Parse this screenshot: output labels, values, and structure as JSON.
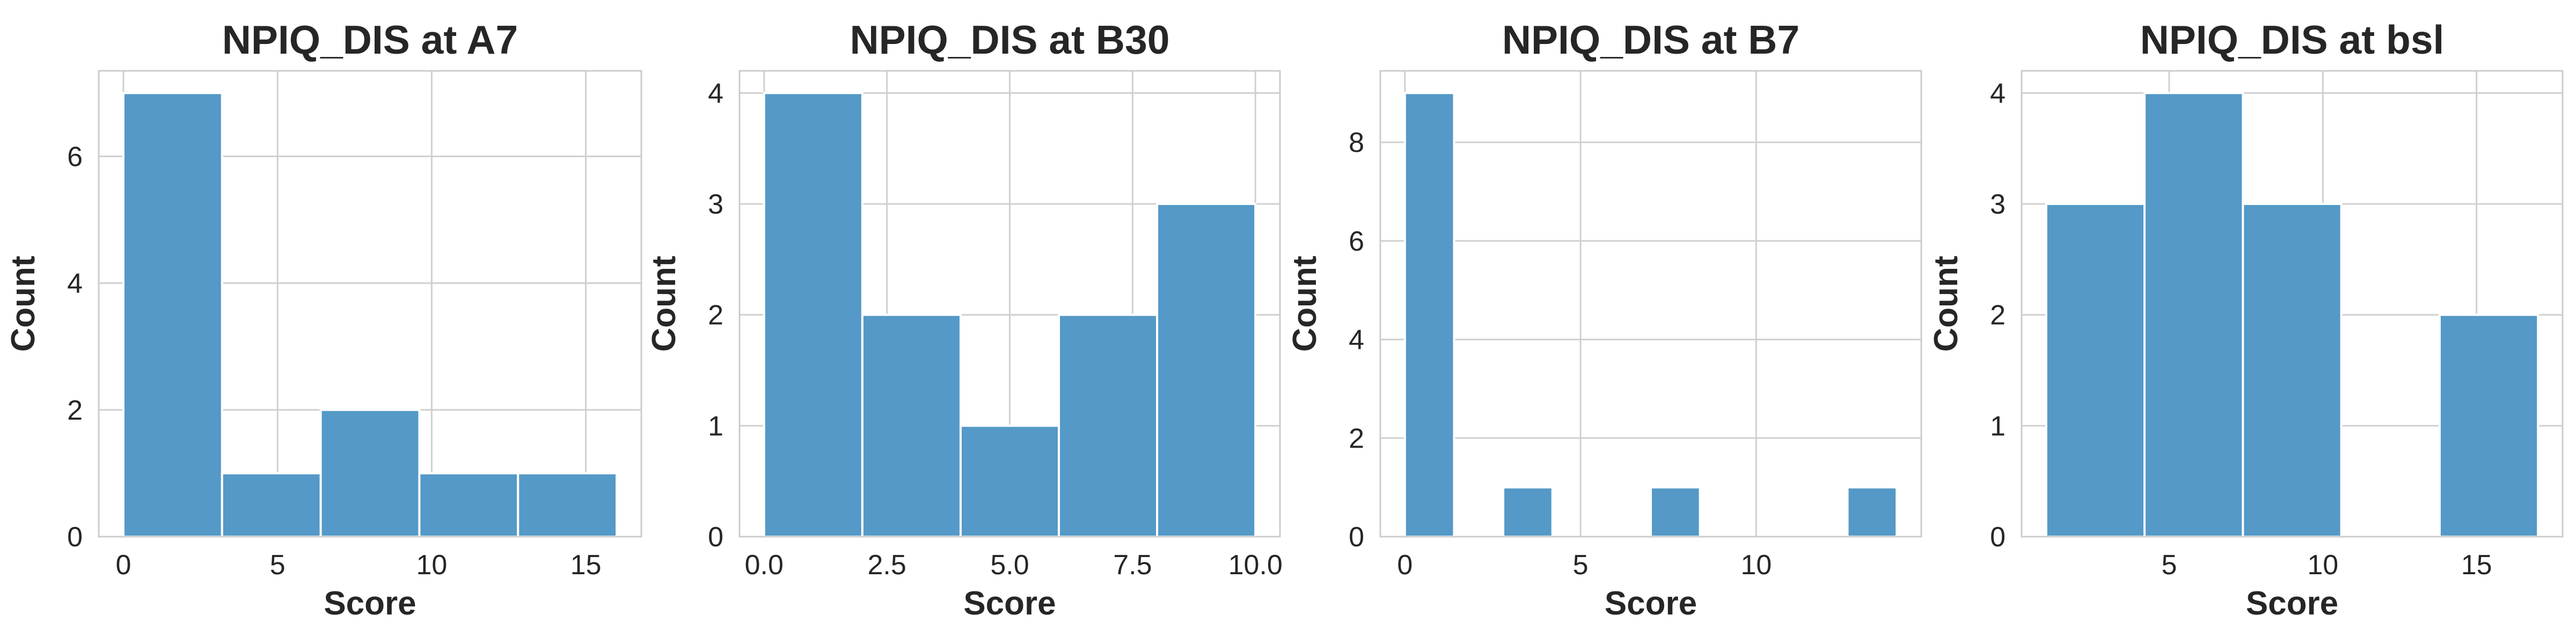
{
  "colors": {
    "bar": "#5499c7",
    "bar_stroke": "#ffffff",
    "grid": "#d0d0d0",
    "background": "#ffffff",
    "text": "#262626"
  },
  "chart_data": [
    {
      "type": "bar",
      "title": "NPIQ_DIS at A7",
      "xlabel": "Score",
      "ylabel": "Count",
      "bins": [
        [
          0,
          3.2
        ],
        [
          3.2,
          6.4
        ],
        [
          6.4,
          9.6
        ],
        [
          9.6,
          12.8
        ],
        [
          12.8,
          16
        ]
      ],
      "values": [
        7,
        1,
        2,
        1,
        1
      ],
      "xlim": [
        -0.8,
        16.8
      ],
      "ylim": [
        0,
        7.35
      ],
      "xticks": [
        0,
        5,
        10,
        15
      ],
      "xtick_labels": [
        "0",
        "5",
        "10",
        "15"
      ],
      "yticks": [
        0,
        2,
        4,
        6
      ],
      "ytick_labels": [
        "0",
        "2",
        "4",
        "6"
      ],
      "grid": true
    },
    {
      "type": "bar",
      "title": "NPIQ_DIS at B30",
      "xlabel": "Score",
      "ylabel": "Count",
      "bins": [
        [
          0,
          2
        ],
        [
          2,
          4
        ],
        [
          4,
          6
        ],
        [
          6,
          8
        ],
        [
          8,
          10
        ]
      ],
      "values": [
        4,
        2,
        1,
        2,
        3
      ],
      "xlim": [
        -0.5,
        10.5
      ],
      "ylim": [
        0,
        4.2
      ],
      "xticks": [
        0,
        2.5,
        5,
        7.5,
        10
      ],
      "xtick_labels": [
        "0.0",
        "2.5",
        "5.0",
        "7.5",
        "10.0"
      ],
      "yticks": [
        0,
        1,
        2,
        3,
        4
      ],
      "ytick_labels": [
        "0",
        "1",
        "2",
        "3",
        "4"
      ],
      "grid": true
    },
    {
      "type": "bar",
      "title": "NPIQ_DIS at B7",
      "xlabel": "Score",
      "ylabel": "Count",
      "bins": [
        [
          0,
          1.4
        ],
        [
          2.8,
          4.2
        ],
        [
          7,
          8.4
        ],
        [
          12.6,
          14
        ]
      ],
      "values": [
        9,
        1,
        1,
        1
      ],
      "xlim": [
        -0.7,
        14.7
      ],
      "ylim": [
        0,
        9.45
      ],
      "xticks": [
        0,
        5,
        10
      ],
      "xtick_labels": [
        "0",
        "5",
        "10"
      ],
      "yticks": [
        0,
        2,
        4,
        6,
        8
      ],
      "ytick_labels": [
        "0",
        "2",
        "4",
        "6",
        "8"
      ],
      "grid": true
    },
    {
      "type": "bar",
      "title": "NPIQ_DIS at bsl",
      "xlabel": "Score",
      "ylabel": "Count",
      "bins": [
        [
          1,
          4.2
        ],
        [
          4.2,
          7.4
        ],
        [
          7.4,
          10.6
        ],
        [
          13.8,
          17
        ]
      ],
      "values": [
        3,
        4,
        3,
        2
      ],
      "xlim": [
        0.2,
        17.8
      ],
      "ylim": [
        0,
        4.2
      ],
      "xticks": [
        5,
        10,
        15
      ],
      "xtick_labels": [
        "5",
        "10",
        "15"
      ],
      "yticks": [
        0,
        1,
        2,
        3,
        4
      ],
      "ytick_labels": [
        "0",
        "1",
        "2",
        "3",
        "4"
      ],
      "grid": true
    }
  ]
}
